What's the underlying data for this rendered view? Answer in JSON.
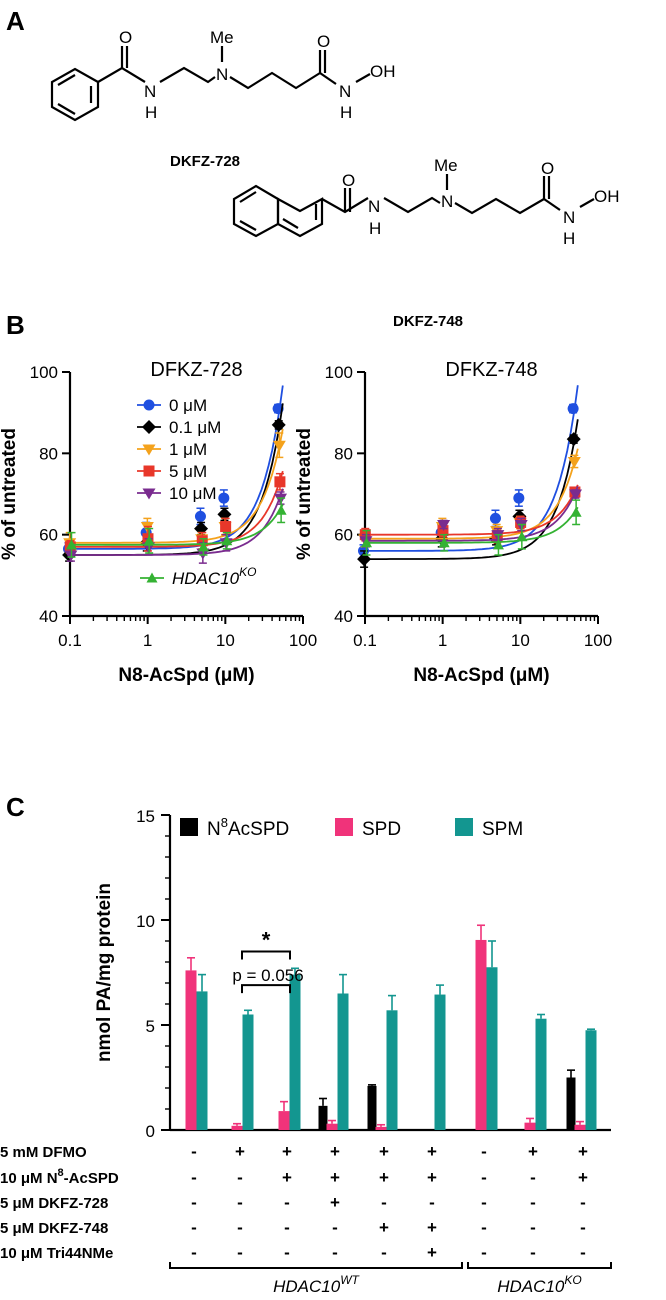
{
  "panel_letters": {
    "a": "A",
    "b": "B",
    "c": "C"
  },
  "structures": {
    "dkfz728": {
      "name": "DKFZ-728",
      "atoms": {
        "o1": "O",
        "o2": "O",
        "n1": "N",
        "h1": "H",
        "me": "Me",
        "n2": "N",
        "n3": "N",
        "h3": "H",
        "oh": "OH"
      }
    },
    "dkfz748": {
      "name": "DKFZ-748",
      "atoms": {
        "o1": "O",
        "o2": "O",
        "n1": "N",
        "h1": "H",
        "me": "Me",
        "n2": "N",
        "n3": "N",
        "h3": "H",
        "oh": "OH"
      }
    }
  },
  "colors": {
    "0": "#1f4fe0",
    "0.1": "#000000",
    "1": "#f4a21c",
    "5": "#e8372a",
    "10": "#7a2c8f",
    "ko": "#34b233",
    "n8acspd": "#000000",
    "spd": "#f0337a",
    "spm": "#139690"
  },
  "chart_data": [
    {
      "type": "scatter",
      "title": "DFKZ-728",
      "xlabel": "N8-AcSpd (μM)",
      "ylabel": "% of untreated",
      "xscale": "log",
      "xlim": [
        0.1,
        100
      ],
      "ylim": [
        40,
        100
      ],
      "xticks": [
        "0.1",
        "1",
        "10",
        "100"
      ],
      "yticks": [
        "40",
        "60",
        "80",
        "100"
      ],
      "x": [
        0.1,
        1,
        5,
        10,
        50
      ],
      "legend_position": "top-left",
      "series": [
        {
          "name": "0 μM",
          "color_key": "0",
          "marker": "circle",
          "values": [
            56.5,
            60.5,
            64.5,
            69,
            91
          ],
          "errors": [
            1.5,
            2.5,
            2,
            2,
            1
          ]
        },
        {
          "name": "0.1 μM",
          "color_key": "0.1",
          "marker": "diamond",
          "values": [
            55,
            58,
            61.5,
            65,
            87
          ],
          "errors": [
            1.5,
            2,
            1.5,
            1.5,
            1
          ]
        },
        {
          "name": "1 μM",
          "color_key": "1",
          "marker": "triangle-down",
          "values": [
            58,
            62,
            59,
            62,
            82
          ],
          "errors": [
            2.5,
            2,
            1.5,
            2,
            3
          ]
        },
        {
          "name": "5 μM",
          "color_key": "5",
          "marker": "square",
          "values": [
            57,
            59,
            58.5,
            62,
            73
          ],
          "errors": [
            1.5,
            3,
            2,
            2,
            2
          ]
        },
        {
          "name": "10 μM",
          "color_key": "10",
          "marker": "triangle-down",
          "values": [
            55,
            57,
            55.5,
            58,
            69
          ],
          "errors": [
            1.5,
            2,
            2.5,
            2,
            1.5
          ]
        },
        {
          "name": "HDAC10KO",
          "label_main": "HDAC10",
          "label_sup": "KO",
          "color_key": "ko",
          "marker": "triangle-up",
          "values": [
            57.5,
            58.5,
            57,
            58.5,
            66
          ],
          "errors": [
            3,
            3,
            2,
            2,
            3
          ]
        }
      ]
    },
    {
      "type": "scatter",
      "title": "DFKZ-748",
      "xlabel": "N8-AcSpd (μM)",
      "ylabel": "% of untreated",
      "xscale": "log",
      "xlim": [
        0.1,
        100
      ],
      "ylim": [
        40,
        100
      ],
      "xticks": [
        "0.1",
        "1",
        "10",
        "100"
      ],
      "yticks": [
        "40",
        "60",
        "80",
        "100"
      ],
      "x": [
        0.1,
        1,
        5,
        10,
        50
      ],
      "series": [
        {
          "name": "0 μM",
          "color_key": "0",
          "marker": "circle",
          "values": [
            56,
            60.5,
            64,
            69,
            91
          ],
          "errors": [
            1.5,
            2,
            2,
            2,
            1
          ]
        },
        {
          "name": "0.1 μM",
          "color_key": "0.1",
          "marker": "diamond",
          "values": [
            54,
            59,
            59,
            64.5,
            83.5
          ],
          "errors": [
            2,
            2,
            1.5,
            1.5,
            1
          ]
        },
        {
          "name": "1 μM",
          "color_key": "1",
          "marker": "triangle-down",
          "values": [
            59,
            62,
            61,
            63,
            78
          ],
          "errors": [
            2,
            2,
            1.5,
            1.5,
            1.5
          ]
        },
        {
          "name": "5 μM",
          "color_key": "5",
          "marker": "square",
          "values": [
            60,
            61,
            59.5,
            63,
            70.5
          ],
          "errors": [
            1.5,
            1.5,
            1.5,
            1.5,
            1
          ]
        },
        {
          "name": "10 μM",
          "color_key": "10",
          "marker": "triangle-down",
          "values": [
            58.5,
            62.5,
            60,
            62.5,
            70
          ],
          "errors": [
            1.5,
            1,
            1.5,
            1.5,
            1
          ]
        },
        {
          "name": "HDAC10KO",
          "color_key": "ko",
          "marker": "triangle-up",
          "values": [
            58,
            58,
            57.5,
            59.5,
            65.5
          ],
          "errors": [
            3,
            2,
            2.5,
            3,
            3
          ]
        }
      ]
    },
    {
      "type": "bar",
      "ylabel": "nmol PA/mg protein",
      "ylim": [
        0,
        15
      ],
      "yticks": [
        "0",
        "5",
        "10",
        "15"
      ],
      "legend_position": "top",
      "legend": [
        {
          "name": "N8AcSPD",
          "label_main": "N",
          "label_sup": "8",
          "label_rest": "AcSPD",
          "color_key": "n8acspd"
        },
        {
          "name": "SPD",
          "color_key": "spd"
        },
        {
          "name": "SPM",
          "color_key": "spm"
        }
      ],
      "conditions": [
        {
          "N8AcSPD": 0,
          "SPD": 7.6,
          "SPM": 6.6,
          "err": [
            0,
            0.6,
            0.8
          ]
        },
        {
          "N8AcSPD": 0,
          "SPD": 0.2,
          "SPM": 5.5,
          "err": [
            0,
            0.1,
            0.2
          ]
        },
        {
          "N8AcSPD": 0.05,
          "SPD": 0.9,
          "SPM": 7.4,
          "err": [
            0,
            0.45,
            0.3
          ]
        },
        {
          "N8AcSPD": 1.15,
          "SPD": 0.3,
          "SPM": 6.5,
          "err": [
            0.35,
            0.15,
            0.9
          ]
        },
        {
          "N8AcSPD": 2.1,
          "SPD": 0.15,
          "SPM": 5.7,
          "err": [
            0.05,
            0.1,
            0.7
          ]
        },
        {
          "N8AcSPD": 0,
          "SPD": 0,
          "SPM": 6.45,
          "err": [
            0,
            0,
            0.45
          ]
        },
        {
          "N8AcSPD": 0,
          "SPD": 9.05,
          "SPM": 7.75,
          "err": [
            0,
            0.7,
            1.25
          ]
        },
        {
          "N8AcSPD": 0,
          "SPD": 0.35,
          "SPM": 5.3,
          "err": [
            0,
            0.2,
            0.2
          ]
        },
        {
          "N8AcSPD": 2.5,
          "SPD": 0.25,
          "SPM": 4.75,
          "err": [
            0.35,
            0.15,
            0.05
          ]
        }
      ],
      "significance": [
        {
          "label": "*",
          "from": 1,
          "to": 2,
          "y": 8.5
        },
        {
          "label": "p = 0.056",
          "from": 1,
          "to": 2,
          "y": 6.9
        }
      ],
      "treatment_rows": [
        {
          "label_main": "5 mM DFMO",
          "signs": [
            "-",
            "+",
            "+",
            "+",
            "+",
            "+",
            "-",
            "+",
            "+"
          ]
        },
        {
          "label_main": "10 μM N",
          "label_sup": "8",
          "label_rest": "-AcSPD",
          "signs": [
            "-",
            "-",
            "+",
            "+",
            "+",
            "+",
            "-",
            "-",
            "+"
          ]
        },
        {
          "label_main": "5 μM DKFZ-728",
          "signs": [
            "-",
            "-",
            "-",
            "+",
            "-",
            "-",
            "-",
            "-",
            "-"
          ]
        },
        {
          "label_main": "5 μM DKFZ-748",
          "signs": [
            "-",
            "-",
            "-",
            "-",
            "+",
            "+",
            "-",
            "-",
            "-"
          ]
        },
        {
          "label_main": "10 μM Tri44NMe",
          "signs": [
            "-",
            "-",
            "-",
            "-",
            "-",
            "+",
            "-",
            "-",
            "-"
          ]
        }
      ],
      "groups": [
        {
          "label_main": "HDAC10",
          "label_sup": "WT"
        },
        {
          "label_main": "HDAC10",
          "label_sup": "KO"
        }
      ]
    }
  ]
}
